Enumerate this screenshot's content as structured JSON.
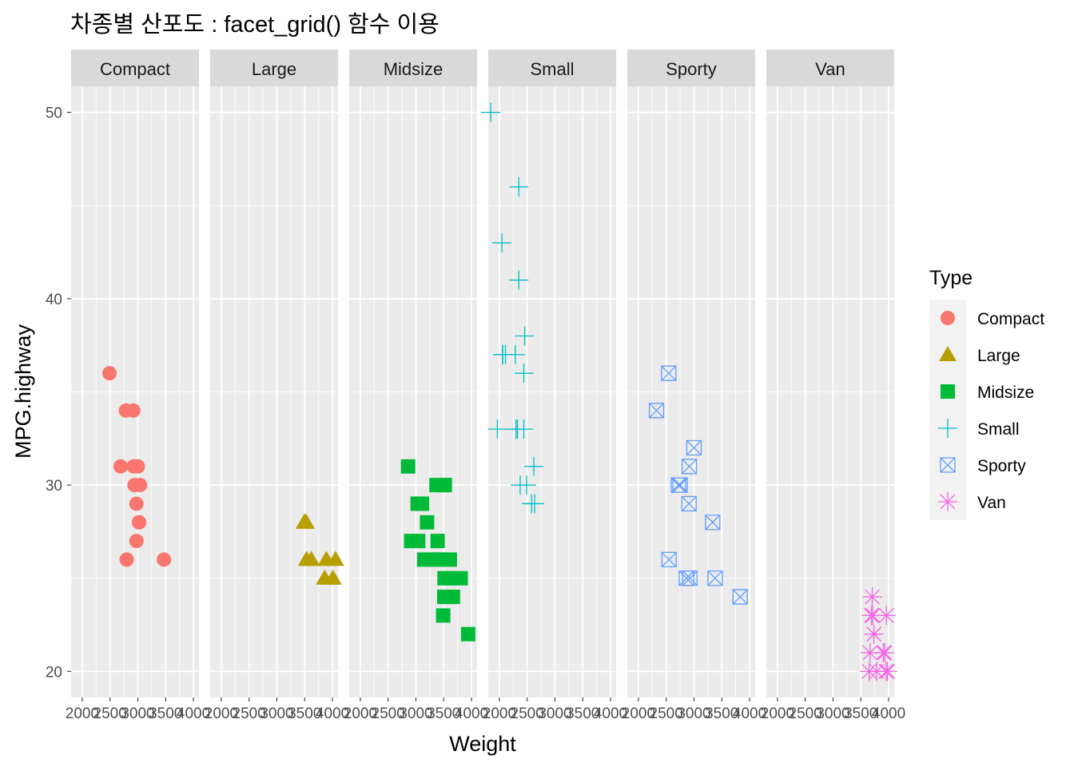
{
  "chart_data": {
    "type": "scatter",
    "title": "차종별 산포도 : facet_grid() 함수 이용",
    "xlabel": "Weight",
    "ylabel": "MPG.highway",
    "xlim": [
      1800,
      4100
    ],
    "ylim": [
      18.6,
      51.4
    ],
    "x_ticks": [
      2000,
      2500,
      3000,
      3500,
      4000
    ],
    "x_tick_labels": [
      "2000",
      "2500",
      "3000",
      "3500",
      "4000"
    ],
    "y_ticks": [
      20,
      30,
      40,
      50
    ],
    "y_tick_labels": [
      "20",
      "30",
      "40",
      "50"
    ],
    "grid": true,
    "legend_title": "Type",
    "legend_position": "right",
    "facets": [
      "Compact",
      "Large",
      "Midsize",
      "Small",
      "Sporty",
      "Van"
    ],
    "series": [
      {
        "name": "Compact",
        "facet": "Compact",
        "color": "#F8766D",
        "shape": "circle",
        "x": [
          2490,
          2690,
          2785,
          2920,
          2925,
          2940,
          2975,
          3020,
          3040,
          2975,
          3025,
          3000,
          2800,
          3470
        ],
        "y": [
          36,
          31,
          34,
          34,
          31,
          30,
          29,
          28,
          30,
          27,
          28,
          31,
          26,
          26
        ]
      },
      {
        "name": "Large",
        "facet": "Large",
        "color": "#B79F00",
        "shape": "triangle",
        "x": [
          3495,
          3525,
          3620,
          3535,
          3860,
          3890,
          4010,
          4055
        ],
        "y": [
          28,
          28,
          26,
          26,
          25,
          26,
          25,
          26
        ]
      },
      {
        "name": "Midsize",
        "facet": "Midsize",
        "color": "#00BA38",
        "shape": "square",
        "x": [
          2860,
          2915,
          3040,
          3030,
          3110,
          3200,
          3150,
          3370,
          3280,
          3390,
          3405,
          3470,
          3425,
          3520,
          3610,
          3665,
          3805,
          3515,
          3620,
          3510,
          3570,
          3490,
          3940
        ],
        "y": [
          31,
          27,
          27,
          29,
          29,
          28,
          26,
          30,
          26,
          27,
          26,
          30,
          26,
          30,
          26,
          24,
          25,
          25,
          25,
          24,
          24,
          23,
          22
        ]
      },
      {
        "name": "Small",
        "facet": "Small",
        "color": "#00BFC4",
        "shape": "plus",
        "x": [
          1845,
          2045,
          2350,
          2350,
          2455,
          2285,
          2055,
          2110,
          2060,
          1965,
          2300,
          2325,
          2440,
          2440,
          2620,
          2375,
          2490,
          2580,
          2635
        ],
        "y": [
          50,
          43,
          46,
          41,
          38,
          37,
          37,
          37,
          37,
          33,
          33,
          33,
          33,
          36,
          31,
          30,
          30,
          29,
          29
        ]
      },
      {
        "name": "Sporty",
        "facet": "Sporty",
        "color": "#619CFF",
        "shape": "square-x",
        "x": [
          2545,
          2325,
          3000,
          2915,
          2720,
          2750,
          2910,
          3335,
          2550,
          2865,
          2925,
          3380,
          3830
        ],
        "y": [
          36,
          34,
          32,
          31,
          30,
          30,
          29,
          28,
          26,
          25,
          25,
          25,
          24
        ]
      },
      {
        "name": "Van",
        "facet": "Van",
        "color": "#F564E3",
        "shape": "asterisk",
        "x": [
          3705,
          3690,
          3715,
          3735,
          3735,
          3665,
          3650,
          3785,
          3960,
          3905,
          3930,
          3980,
          3955
        ],
        "y": [
          24,
          23,
          23,
          22,
          22,
          21,
          20,
          20,
          23,
          21,
          21,
          20,
          20
        ]
      }
    ]
  }
}
